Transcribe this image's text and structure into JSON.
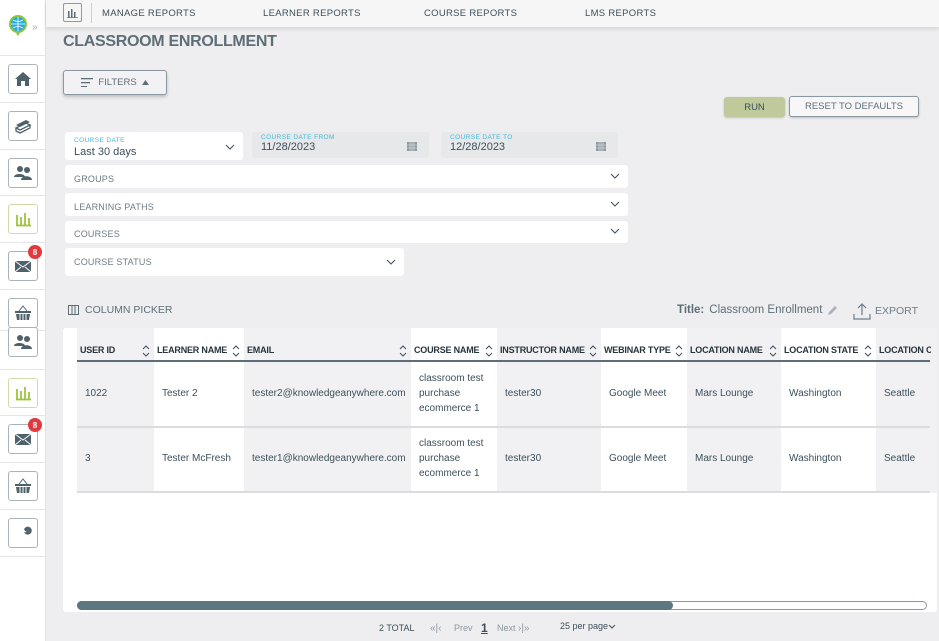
{
  "sidebar": {
    "items": [
      {
        "icon": "home-icon"
      },
      {
        "icon": "books-icon"
      },
      {
        "icon": "users-icon"
      },
      {
        "icon": "bar-chart-icon",
        "active": true
      },
      {
        "icon": "mail-icon",
        "badge": "8"
      },
      {
        "icon": "basket-icon"
      },
      {
        "icon": "users-icon"
      },
      {
        "icon": "bar-chart-icon",
        "active": true
      },
      {
        "icon": "mail-icon",
        "badge": "8"
      },
      {
        "icon": "basket-icon"
      },
      {
        "icon": "wrench-icon"
      }
    ]
  },
  "topnav": {
    "links": [
      "MANAGE REPORTS",
      "LEARNER REPORTS",
      "COURSE REPORTS",
      "LMS REPORTS"
    ]
  },
  "page_title": "CLASSROOM ENROLLMENT",
  "filters_button": "FILTERS",
  "run_button": "RUN",
  "reset_button": "RESET TO DEFAULTS",
  "filters": {
    "course_date": {
      "label": "COURSE DATE",
      "value": "Last 30 days"
    },
    "date_from": {
      "label": "COURSE DATE FROM",
      "value": "11/28/2023"
    },
    "date_to": {
      "label": "COURSE DATE TO",
      "value": "12/28/2023"
    },
    "groups": "GROUPS",
    "learning_paths": "LEARNING PATHS",
    "courses": "COURSES",
    "course_status": "COURSE STATUS"
  },
  "column_picker": "COLUMN PICKER",
  "report_title": {
    "label": "Title:",
    "value": "Classroom Enrollment"
  },
  "export": "EXPORT",
  "table": {
    "columns": [
      "USER ID",
      "LEARNER NAME",
      "EMAIL",
      "COURSE NAME",
      "INSTRUCTOR NAME",
      "WEBINAR TYPE",
      "LOCATION NAME",
      "LOCATION STATE",
      "LOCATION CITY"
    ],
    "rows": [
      [
        "1022",
        "Tester 2",
        "tester2@knowledgeanywhere.com",
        [
          "classroom test",
          "purchase",
          "ecommerce 1"
        ],
        "tester30",
        "Google Meet",
        "Mars Lounge",
        "Washington",
        "Seattle"
      ],
      [
        "3",
        "Tester McFresh",
        "tester1@knowledgeanywhere.com",
        [
          "classroom test",
          "purchase",
          "ecommerce 1"
        ],
        "tester30",
        "Google Meet",
        "Mars Lounge",
        "Washington",
        "Seattle"
      ]
    ]
  },
  "pagination": {
    "total": "2 TOTAL",
    "prev": "Prev",
    "page": "1",
    "next": "Next",
    "per_page": "25 per page"
  },
  "colors": {
    "accent_green": "#bfc99a",
    "label_blue": "#43b9dc",
    "badge_red": "#e0393e",
    "text": "#3d4f5a"
  }
}
